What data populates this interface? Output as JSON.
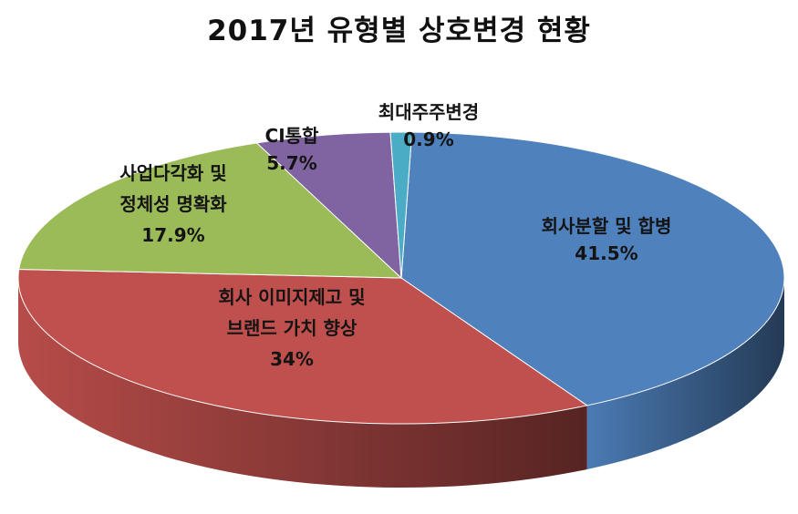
{
  "chart_data": {
    "type": "pie",
    "title": "2017년 유형별 상호변경 현황",
    "legend": "none",
    "slices": [
      {
        "label_lines": [
          "회사분할 및 합병"
        ],
        "value_label": "41.5%",
        "value": 41.5,
        "color": "#4f81bd"
      },
      {
        "label_lines": [
          "회사 이미지제고 및",
          "브랜드 가치 향상"
        ],
        "value_label": "34%",
        "value": 34.0,
        "color": "#c0504d"
      },
      {
        "label_lines": [
          "사업다각화 및",
          "정체성 명확화"
        ],
        "value_label": "17.9%",
        "value": 17.9,
        "color": "#9bbb59"
      },
      {
        "label_lines": [
          "CI통합"
        ],
        "value_label": "5.7%",
        "value": 5.7,
        "color": "#8064a2"
      },
      {
        "label_lines": [
          "최대주주변경"
        ],
        "value_label": "0.9%",
        "value": 0.9,
        "color": "#4bacc6"
      }
    ]
  }
}
